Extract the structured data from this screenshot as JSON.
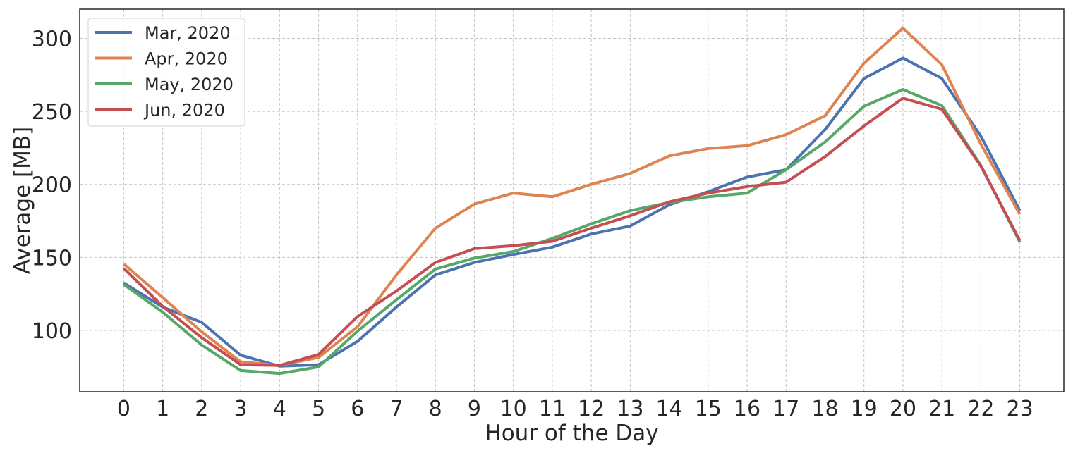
{
  "chart_data": {
    "type": "line",
    "title": "",
    "xlabel": "Hour of the Day",
    "ylabel": "Average [MB]",
    "x": [
      0,
      1,
      2,
      3,
      4,
      5,
      6,
      7,
      8,
      9,
      10,
      11,
      12,
      13,
      14,
      15,
      16,
      17,
      18,
      19,
      20,
      21,
      22,
      23
    ],
    "x_tick_labels": [
      "0",
      "1",
      "2",
      "3",
      "4",
      "5",
      "6",
      "7",
      "8",
      "9",
      "10",
      "11",
      "12",
      "13",
      "14",
      "15",
      "16",
      "17",
      "18",
      "19",
      "20",
      "21",
      "22",
      "23"
    ],
    "y_ticks": [
      100,
      150,
      200,
      250,
      300
    ],
    "y_tick_labels": [
      "100",
      "150",
      "200",
      "250",
      "300"
    ],
    "ylim": [
      58,
      320
    ],
    "xlim": [
      -1.13,
      24.13
    ],
    "grid": true,
    "legend_position": "top-left",
    "series": [
      {
        "name": "Mar, 2020",
        "color": "#4c72b0",
        "values": [
          132.5,
          116,
          105.5,
          83,
          75.5,
          76.5,
          92.5,
          116,
          138,
          146.5,
          152,
          157,
          166,
          171.5,
          186,
          195,
          205,
          210,
          237.5,
          272.5,
          286.5,
          272.5,
          233,
          182
        ]
      },
      {
        "name": "Apr, 2020",
        "color": "#dd8452",
        "values": [
          145.5,
          122.5,
          99,
          78.5,
          76,
          81.5,
          102.5,
          138,
          170,
          186.5,
          194,
          191.5,
          200,
          207.5,
          219.5,
          224.5,
          226.5,
          234,
          247,
          283,
          307,
          282,
          227.5,
          179.5
        ]
      },
      {
        "name": "May, 2020",
        "color": "#55a868",
        "values": [
          131.5,
          112.5,
          90,
          72.5,
          70.5,
          75,
          99.5,
          121,
          142,
          149.5,
          154,
          163,
          173,
          182,
          187.5,
          191.5,
          194,
          210,
          229,
          253.5,
          265,
          254,
          213,
          160.5
        ]
      },
      {
        "name": "Jun, 2020",
        "color": "#c44e52",
        "values": [
          142.5,
          116.5,
          95,
          76.5,
          76,
          83.5,
          109.5,
          127,
          146.5,
          156,
          158,
          161,
          170,
          178.5,
          188,
          194,
          198.5,
          201.5,
          219,
          240,
          259,
          251.5,
          212.5,
          161.5
        ]
      }
    ]
  }
}
